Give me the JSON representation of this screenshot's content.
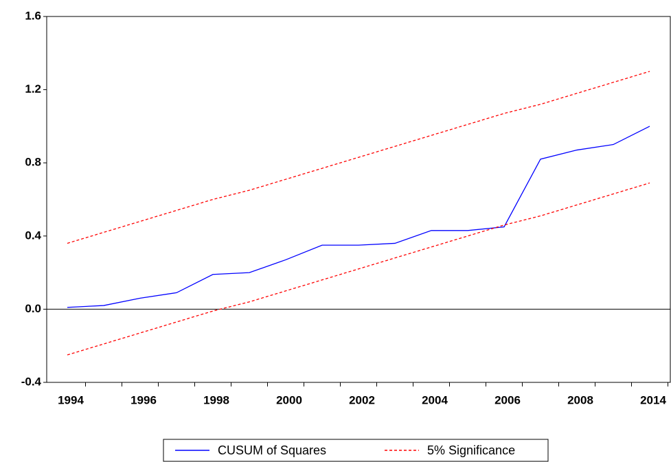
{
  "chart_data": {
    "type": "line",
    "categories": [
      "1994",
      null,
      "1996",
      null,
      "1998",
      null,
      "2000",
      null,
      "2002",
      null,
      "2004",
      null,
      "2006",
      null,
      "2008",
      null,
      "2014"
    ],
    "series": [
      {
        "name": "CUSUM of Squares",
        "color": "#0000ff",
        "values": [
          0.01,
          0.02,
          0.06,
          0.09,
          0.19,
          0.2,
          0.27,
          0.35,
          0.35,
          0.36,
          0.43,
          0.43,
          0.45,
          0.82,
          0.87,
          0.9,
          1.0
        ]
      },
      {
        "name": "5% Significance",
        "color": "#ff0000",
        "values": [
          0.36,
          0.42,
          0.48,
          0.54,
          0.6,
          0.65,
          0.71,
          0.77,
          0.83,
          0.89,
          0.95,
          1.01,
          1.07,
          1.12,
          1.18,
          1.24,
          1.3
        ]
      },
      {
        "color": "#ff0000",
        "values": [
          -0.25,
          -0.19,
          -0.13,
          -0.07,
          -0.01,
          0.04,
          0.1,
          0.16,
          0.22,
          0.28,
          0.34,
          0.4,
          0.46,
          0.51,
          0.57,
          0.63,
          0.69
        ]
      }
    ],
    "ylim": [
      -0.4,
      1.6
    ],
    "yticks": [
      -0.4,
      {
        "value": 0,
        "label": "0.0"
      },
      0.4,
      0.8,
      1.2,
      1.6
    ],
    "grid": false,
    "legend": "bottom"
  }
}
